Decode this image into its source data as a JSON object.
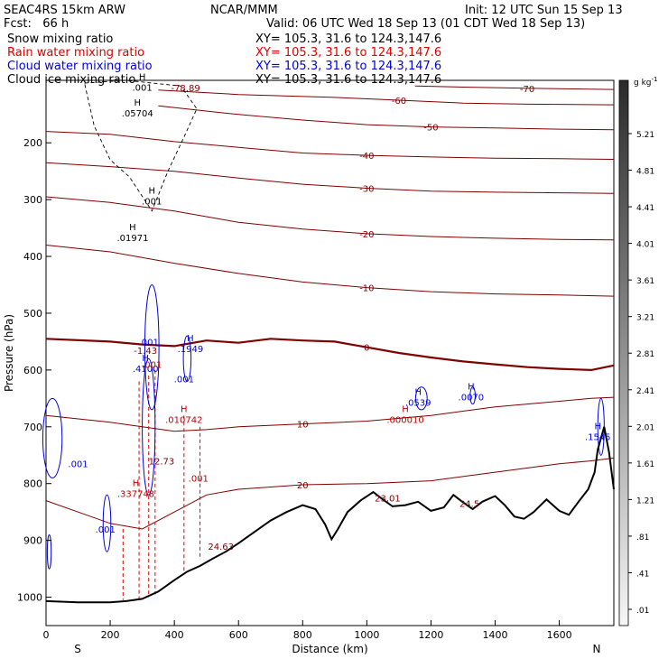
{
  "header": {
    "model": "SEAC4RS 15km ARW",
    "org": "NCAR/MMM",
    "init": "Init: 12 UTC Sun 15 Sep 13",
    "fcst": "Fcst:   66 h",
    "valid": "Valid: 06 UTC Wed 18 Sep 13 (01 CDT Wed 18 Sep 13)",
    "fields": [
      {
        "label": "Snow mixing ratio",
        "xy": "XY= 105.3, 31.6 to 124.3,147.6",
        "color": "#000000"
      },
      {
        "label": "Rain water mixing ratio",
        "xy": "XY= 105.3, 31.6 to 124.3,147.6",
        "color": "#e00000"
      },
      {
        "label": "Cloud water mixing ratio",
        "xy": "XY= 105.3, 31.6 to 124.3,147.6",
        "color": "#0000e0"
      },
      {
        "label": "Cloud ice mixing ratio",
        "xy": "XY= 105.3, 31.6 to 124.3,147.6",
        "color": "#000000"
      }
    ]
  },
  "colorbar": {
    "unit": "g kg",
    "unit_sup": "-1",
    "labels": [
      "5.21",
      "4.81",
      "4.41",
      "4.01",
      "3.61",
      "3.21",
      "2.81",
      "2.41",
      "2.01",
      "1.61",
      "1.21",
      ".81",
      ".41",
      ".01"
    ]
  },
  "chart_data": {
    "type": "cross-section",
    "xlabel": "Distance (km)",
    "ylabel": "Pressure (hPa)",
    "xlim": [
      0,
      1770
    ],
    "ylim": [
      1050,
      90
    ],
    "xticks": [
      0,
      200,
      400,
      600,
      800,
      1000,
      1200,
      1400,
      1600
    ],
    "yticks": [
      200,
      300,
      400,
      500,
      600,
      700,
      800,
      900,
      1000
    ],
    "end_labels": {
      "left": "S",
      "right": "N"
    },
    "terrain_surface_pressure": [
      [
        0,
        1007
      ],
      [
        100,
        1009
      ],
      [
        200,
        1009
      ],
      [
        250,
        1007
      ],
      [
        300,
        1003
      ],
      [
        350,
        990
      ],
      [
        400,
        970
      ],
      [
        440,
        955
      ],
      [
        480,
        945
      ],
      [
        520,
        932
      ],
      [
        560,
        920
      ],
      [
        600,
        905
      ],
      [
        650,
        885
      ],
      [
        700,
        865
      ],
      [
        750,
        850
      ],
      [
        800,
        838
      ],
      [
        840,
        845
      ],
      [
        870,
        872
      ],
      [
        890,
        898
      ],
      [
        910,
        880
      ],
      [
        940,
        850
      ],
      [
        980,
        830
      ],
      [
        1020,
        815
      ],
      [
        1050,
        828
      ],
      [
        1080,
        840
      ],
      [
        1120,
        838
      ],
      [
        1160,
        832
      ],
      [
        1200,
        848
      ],
      [
        1240,
        842
      ],
      [
        1270,
        820
      ],
      [
        1300,
        833
      ],
      [
        1330,
        845
      ],
      [
        1360,
        832
      ],
      [
        1400,
        822
      ],
      [
        1430,
        838
      ],
      [
        1460,
        858
      ],
      [
        1490,
        862
      ],
      [
        1520,
        850
      ],
      [
        1560,
        828
      ],
      [
        1600,
        848
      ],
      [
        1630,
        855
      ],
      [
        1660,
        832
      ],
      [
        1690,
        810
      ],
      [
        1710,
        780
      ],
      [
        1720,
        740
      ],
      [
        1740,
        700
      ],
      [
        1755,
        745
      ],
      [
        1770,
        810
      ]
    ],
    "temperature_contours": [
      {
        "label": "-70",
        "points": [
          [
            1150,
            100
          ],
          [
            1300,
            102
          ],
          [
            1500,
            104
          ],
          [
            1770,
            106
          ]
        ]
      },
      {
        "label": "-60",
        "points": [
          [
            350,
            107
          ],
          [
            600,
            115
          ],
          [
            900,
            120
          ],
          [
            1100,
            125
          ],
          [
            1300,
            130
          ],
          [
            1500,
            132
          ],
          [
            1770,
            133
          ]
        ]
      },
      {
        "label": "-50",
        "points": [
          [
            350,
            135
          ],
          [
            600,
            150
          ],
          [
            800,
            160
          ],
          [
            1000,
            168
          ],
          [
            1200,
            172
          ],
          [
            1400,
            174
          ],
          [
            1600,
            176
          ],
          [
            1770,
            177
          ]
        ]
      },
      {
        "label": "-40",
        "points": [
          [
            0,
            180
          ],
          [
            200,
            185
          ],
          [
            400,
            198
          ],
          [
            600,
            208
          ],
          [
            800,
            218
          ],
          [
            1000,
            222
          ],
          [
            1200,
            225
          ],
          [
            1400,
            227
          ],
          [
            1600,
            228
          ],
          [
            1770,
            229
          ]
        ]
      },
      {
        "label": "-30",
        "points": [
          [
            0,
            235
          ],
          [
            200,
            242
          ],
          [
            400,
            250
          ],
          [
            600,
            262
          ],
          [
            800,
            273
          ],
          [
            1000,
            280
          ],
          [
            1200,
            285
          ],
          [
            1400,
            287
          ],
          [
            1600,
            288
          ],
          [
            1770,
            289
          ]
        ]
      },
      {
        "label": "-20",
        "points": [
          [
            0,
            295
          ],
          [
            200,
            305
          ],
          [
            400,
            320
          ],
          [
            600,
            340
          ],
          [
            800,
            352
          ],
          [
            1000,
            360
          ],
          [
            1200,
            365
          ],
          [
            1400,
            368
          ],
          [
            1600,
            370
          ],
          [
            1770,
            371
          ]
        ]
      },
      {
        "label": "-10",
        "points": [
          [
            0,
            380
          ],
          [
            200,
            392
          ],
          [
            400,
            412
          ],
          [
            600,
            430
          ],
          [
            800,
            445
          ],
          [
            1000,
            455
          ],
          [
            1200,
            462
          ],
          [
            1400,
            466
          ],
          [
            1600,
            468
          ],
          [
            1770,
            470
          ]
        ]
      },
      {
        "label": "0",
        "bold": true,
        "points": [
          [
            0,
            545
          ],
          [
            200,
            550
          ],
          [
            300,
            555
          ],
          [
            400,
            558
          ],
          [
            500,
            548
          ],
          [
            600,
            552
          ],
          [
            700,
            545
          ],
          [
            800,
            548
          ],
          [
            900,
            550
          ],
          [
            1000,
            560
          ],
          [
            1100,
            570
          ],
          [
            1200,
            578
          ],
          [
            1300,
            585
          ],
          [
            1400,
            590
          ],
          [
            1500,
            595
          ],
          [
            1600,
            598
          ],
          [
            1700,
            600
          ],
          [
            1770,
            592
          ]
        ]
      },
      {
        "label": "10",
        "points": [
          [
            0,
            680
          ],
          [
            200,
            692
          ],
          [
            300,
            700
          ],
          [
            400,
            708
          ],
          [
            500,
            705
          ],
          [
            600,
            700
          ],
          [
            800,
            695
          ],
          [
            1000,
            690
          ],
          [
            1200,
            680
          ],
          [
            1400,
            665
          ],
          [
            1600,
            655
          ],
          [
            1700,
            650
          ],
          [
            1770,
            648
          ]
        ]
      },
      {
        "label": "20",
        "points": [
          [
            0,
            830
          ],
          [
            100,
            850
          ],
          [
            200,
            870
          ],
          [
            300,
            880
          ],
          [
            400,
            850
          ],
          [
            500,
            820
          ],
          [
            600,
            810
          ],
          [
            800,
            802
          ],
          [
            1000,
            800
          ],
          [
            1200,
            795
          ],
          [
            1400,
            780
          ],
          [
            1600,
            765
          ],
          [
            1700,
            760
          ],
          [
            1770,
            755
          ]
        ]
      }
    ],
    "hydrometeor_maxima": [
      {
        "field": "cloud ice",
        "label": ".05704",
        "x": 285,
        "p": 150
      },
      {
        "field": "cloud ice",
        "label": ".01971",
        "x": 270,
        "p": 370
      },
      {
        "field": "cloud ice",
        "label": ".001",
        "x": 300,
        "p": 105
      },
      {
        "field": "cloud ice",
        "label": ".001",
        "x": 330,
        "p": 305
      },
      {
        "field": "cloud water",
        "label": ".4100",
        "x": 310,
        "p": 600
      },
      {
        "field": "cloud water",
        "label": ".1949",
        "x": 450,
        "p": 565
      },
      {
        "field": "cloud water",
        "label": ".0539",
        "x": 1160,
        "p": 660
      },
      {
        "field": "cloud water",
        "label": ".0070",
        "x": 1325,
        "p": 650
      },
      {
        "field": "cloud water",
        "label": ".1545",
        "x": 1720,
        "p": 720
      },
      {
        "field": "rain water",
        "label": ".010742",
        "x": 430,
        "p": 690
      },
      {
        "field": "rain water",
        "label": ".000010",
        "x": 1120,
        "p": 690
      },
      {
        "field": "rain water",
        "label": ".337748",
        "x": 280,
        "p": 820
      }
    ],
    "extra_labels": [
      {
        "label": ".001",
        "color": "#0000e0",
        "x": 320,
        "p": 550
      },
      {
        "label": ".001",
        "color": "#0000e0",
        "x": 430,
        "p": 615
      },
      {
        "label": ".001",
        "color": "#0000e0",
        "x": 100,
        "p": 765
      },
      {
        "label": ".001",
        "color": "#0000e0",
        "x": 185,
        "p": 880
      },
      {
        "label": ".001",
        "color": "#c00000",
        "x": 330,
        "p": 590
      },
      {
        "label": ".001",
        "color": "#c00000",
        "x": 475,
        "p": 790
      },
      {
        "label": "24.63",
        "color": "#800000",
        "x": 545,
        "p": 910
      },
      {
        "label": "23.01",
        "color": "#800000",
        "x": 1065,
        "p": 825
      },
      {
        "label": "24.5",
        "color": "#800000",
        "x": 1320,
        "p": 835
      },
      {
        "label": "-78.89",
        "color": "#800000",
        "x": 435,
        "p": 103
      },
      {
        "label": "-1.43",
        "color": "#800000",
        "x": 310,
        "p": 565
      },
      {
        "label": "12.73",
        "color": "#800000",
        "x": 360,
        "p": 760
      }
    ]
  }
}
